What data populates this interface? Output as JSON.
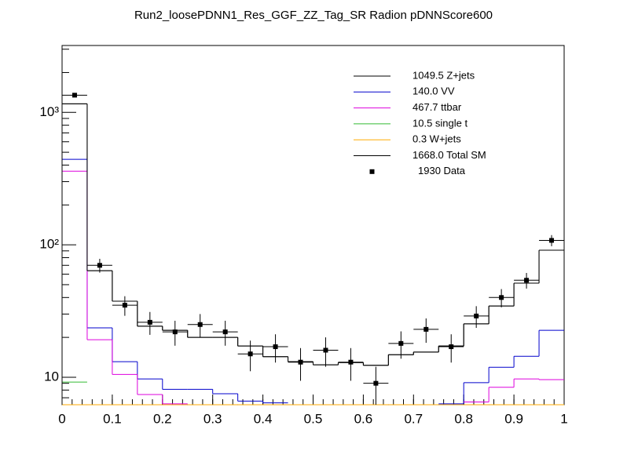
{
  "chart_data": {
    "type": "histogram",
    "title": "Run2_loosePDNN1_Res_GGF_ZZ_Tag_SR Radion  pDNNScore600",
    "bins": [
      0,
      0.05,
      0.1,
      0.15,
      0.2,
      0.25,
      0.3,
      0.35,
      0.4,
      0.45,
      0.5,
      0.55,
      0.6,
      0.65,
      0.7,
      0.75,
      0.8,
      0.85,
      0.9,
      0.95,
      1
    ],
    "xlim": [
      0,
      1
    ],
    "xticks": [
      0,
      0.1,
      0.2,
      0.3,
      0.4,
      0.5,
      0.6,
      0.7,
      0.8,
      0.9,
      1
    ],
    "ylim": [
      6.2,
      3200
    ],
    "yticks": [
      {
        "value": 10,
        "label": "10"
      },
      {
        "value": 100,
        "label": "10²"
      },
      {
        "value": 1000,
        "label": "10³"
      }
    ],
    "log_y": true,
    "series": [
      {
        "name": "1049.5 Z+jets",
        "color": "#000000",
        "values": [
          1160,
          63.8,
          37.5,
          24.3,
          22.6,
          20,
          20,
          17.2,
          14.3,
          13.1,
          12.4,
          12.9,
          12.3,
          14.8,
          15.5,
          17.2,
          25.3,
          34.5,
          51.3,
          91
        ]
      },
      {
        "name": "140.0 VV",
        "color": "#0000cc",
        "values": [
          442,
          23.6,
          13.1,
          9.7,
          8.1,
          8.1,
          7.5,
          6.6,
          6.4,
          null,
          null,
          null,
          null,
          null,
          null,
          6.3,
          9.1,
          11.9,
          14.4,
          22.6
        ]
      },
      {
        "name": "467.7 ttbar",
        "color": "#dd00dd",
        "values": [
          360,
          19.2,
          10.5,
          7.4,
          6.3,
          null,
          null,
          null,
          null,
          null,
          null,
          null,
          null,
          null,
          null,
          null,
          6.5,
          8.4,
          9.7,
          9.6
        ]
      },
      {
        "name": "10.5 single t",
        "color": "#33bb33",
        "values": [
          9.2,
          null,
          null,
          null,
          null,
          null,
          null,
          null,
          null,
          null,
          null,
          null,
          null,
          null,
          null,
          null,
          null,
          null,
          null,
          null
        ]
      },
      {
        "name": "0.3 W+jets",
        "color": "#ffaa00",
        "values": [
          0.01,
          0.01,
          0.01,
          0.01,
          0.01,
          0.01,
          0.01,
          0.01,
          0.01,
          0.01,
          0.01,
          0.01,
          0.01,
          0.01,
          0.01,
          0.01,
          0.01,
          0.01,
          0.01,
          0.01
        ]
      },
      {
        "name": "1668.0 Total SM",
        "color": "#000000",
        "values": [
          1160,
          63.8,
          37.5,
          24.3,
          22.6,
          20,
          20,
          17.2,
          14.3,
          13.1,
          12.4,
          12.9,
          12.3,
          14.8,
          15.5,
          17.2,
          25.3,
          34.5,
          51.3,
          91
        ]
      }
    ],
    "data": {
      "name": "1930 Data",
      "color": "#000000",
      "values": [
        1349,
        70,
        35,
        26,
        22,
        25,
        22,
        15,
        17,
        13,
        16,
        13,
        9,
        18,
        23,
        17,
        29,
        40,
        54,
        108
      ],
      "errors": [
        36.7,
        8.4,
        5.9,
        5.1,
        4.7,
        5,
        4.7,
        3.9,
        4.1,
        3.6,
        4,
        3.6,
        3,
        4.2,
        4.8,
        4.1,
        5.4,
        6.3,
        7.3,
        10.4
      ]
    }
  }
}
